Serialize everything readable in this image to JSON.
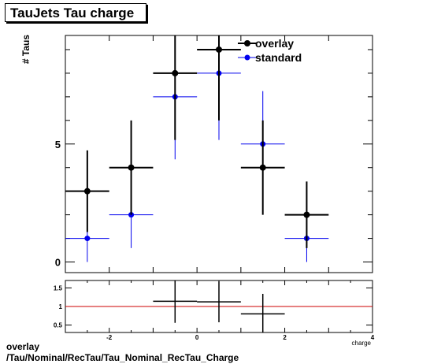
{
  "title": "TauJets Tau charge",
  "footer": {
    "line1": "overlay",
    "line2": "/Tau/Nominal/RecTau/Tau_Nominal_RecTau_Charge"
  },
  "chart_data": [
    {
      "type": "scatter",
      "ylabel": "# Taus",
      "xlabel": "charge",
      "xlim": [
        -3,
        4
      ],
      "ylim": [
        -0.45,
        9.6
      ],
      "y_ticks": [
        0,
        5
      ],
      "grid": false,
      "legend_position": "top-right",
      "series": [
        {
          "name": "overlay",
          "color": "#000000",
          "points": [
            {
              "x": -2.5,
              "y": 3,
              "xerr": 0.5,
              "yerr": 1.73
            },
            {
              "x": -1.5,
              "y": 4,
              "xerr": 0.5,
              "yerr": 2.0
            },
            {
              "x": -0.5,
              "y": 8,
              "xerr": 0.5,
              "yerr": 2.83
            },
            {
              "x": 0.5,
              "y": 9,
              "xerr": 0.5,
              "yerr": 3.0
            },
            {
              "x": 1.5,
              "y": 4,
              "xerr": 0.5,
              "yerr": 2.0
            },
            {
              "x": 2.5,
              "y": 2,
              "xerr": 0.5,
              "yerr": 1.41
            }
          ]
        },
        {
          "name": "standard",
          "color": "#0000ee",
          "points": [
            {
              "x": -2.5,
              "y": 1,
              "xerr": 0.5,
              "yerr": 1.0
            },
            {
              "x": -1.5,
              "y": 2,
              "xerr": 0.5,
              "yerr": 1.41
            },
            {
              "x": -0.5,
              "y": 7,
              "xerr": 0.5,
              "yerr": 2.65
            },
            {
              "x": 0.5,
              "y": 8,
              "xerr": 0.5,
              "yerr": 2.83
            },
            {
              "x": 1.5,
              "y": 5,
              "xerr": 0.5,
              "yerr": 2.24
            },
            {
              "x": 2.5,
              "y": 1,
              "xerr": 0.5,
              "yerr": 1.0
            }
          ]
        }
      ]
    },
    {
      "type": "scatter",
      "xlabel": "charge",
      "xlim": [
        -3,
        4
      ],
      "ylim": [
        0.3,
        1.7
      ],
      "x_ticks": [
        -2,
        0,
        2,
        4
      ],
      "y_ticks": [
        0.5,
        1,
        1.5
      ],
      "reference_line": {
        "y": 1,
        "color": "#cc0000"
      },
      "series": [
        {
          "name": "ratio",
          "color": "#000000",
          "points": [
            {
              "x": -0.5,
              "y": 1.14,
              "xerr": 0.5,
              "yerr": 0.58
            },
            {
              "x": 0.5,
              "y": 1.125,
              "xerr": 0.5,
              "yerr": 0.55
            },
            {
              "x": 1.5,
              "y": 0.8,
              "xerr": 0.5,
              "yerr": 0.54
            }
          ]
        }
      ]
    }
  ]
}
